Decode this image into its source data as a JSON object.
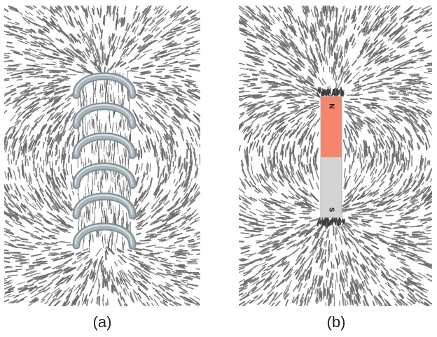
{
  "panels": [
    {
      "caption": "(a)",
      "subject": "coil"
    },
    {
      "caption": "(b)",
      "subject": "bar-magnet"
    }
  ],
  "magnet": {
    "north_label": "N",
    "south_label": "S",
    "north_color": "#f4866b",
    "south_color": "#d4d4d4"
  },
  "colors": {
    "filings": "#6a6a6a",
    "coil": "#a9b6bc",
    "coil_edge": "#7f8e95"
  }
}
